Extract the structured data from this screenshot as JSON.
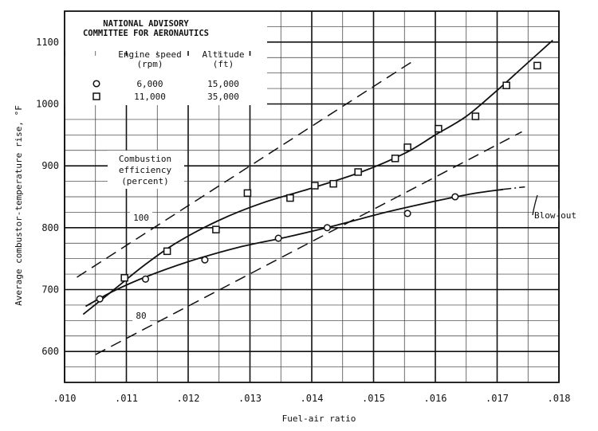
{
  "chart_data": {
    "type": "scatter",
    "header": {
      "organization_line1": "NATIONAL ADVISORY",
      "organization_line2": "COMMITTEE FOR AERONAUTICS"
    },
    "xlabel": "Fuel-air ratio",
    "ylabel": "Average combustor-temperature rise, °F",
    "xlim": [
      0.01,
      0.018
    ],
    "ylim": [
      550,
      1150
    ],
    "x_ticks": [
      ".010",
      ".011",
      ".012",
      ".013",
      ".014",
      ".015",
      ".016",
      ".017",
      ".018"
    ],
    "y_ticks": [
      "600",
      "700",
      "800",
      "900",
      "1000",
      "1100"
    ],
    "grid": true,
    "legend": {
      "col1_header_line1": "Engine speed",
      "col1_header_line2": "(rpm)",
      "col2_header_line1": "Altitude",
      "col2_header_line2": "(ft)",
      "placement": "top-left",
      "rows": [
        {
          "symbol": "circle",
          "speed": "6,000",
          "altitude": "15,000"
        },
        {
          "symbol": "square",
          "speed": "11,000",
          "altitude": "35,000"
        }
      ]
    },
    "series": [
      {
        "symbol": "circle",
        "points": [
          [
            0.01057,
            685
          ],
          [
            0.01131,
            717
          ],
          [
            0.01227,
            748
          ],
          [
            0.01346,
            783
          ],
          [
            0.01425,
            800
          ],
          [
            0.01555,
            823
          ],
          [
            0.01632,
            850
          ]
        ],
        "fit_curve": [
          [
            0.01034,
            673
          ],
          [
            0.0108,
            698
          ],
          [
            0.0113,
            720
          ],
          [
            0.012,
            745
          ],
          [
            0.0128,
            768
          ],
          [
            0.0136,
            785
          ],
          [
            0.0144,
            804
          ],
          [
            0.0152,
            825
          ],
          [
            0.016,
            843
          ],
          [
            0.0166,
            855
          ],
          [
            0.0171,
            862
          ]
        ],
        "blowout_extension": [
          [
            0.0171,
            862
          ],
          [
            0.01745,
            866
          ]
        ]
      },
      {
        "symbol": "square",
        "points": [
          [
            0.01097,
            719
          ],
          [
            0.01166,
            762
          ],
          [
            0.01245,
            797
          ],
          [
            0.01296,
            856
          ],
          [
            0.01365,
            848
          ],
          [
            0.01405,
            868
          ],
          [
            0.01435,
            871
          ],
          [
            0.01475,
            890
          ],
          [
            0.01535,
            912
          ],
          [
            0.01555,
            930
          ],
          [
            0.01605,
            960
          ],
          [
            0.01665,
            980
          ],
          [
            0.01715,
            1030
          ],
          [
            0.01765,
            1062
          ]
        ],
        "fit_curve": [
          [
            0.0103,
            660
          ],
          [
            0.0108,
            700
          ],
          [
            0.0113,
            740
          ],
          [
            0.0118,
            775
          ],
          [
            0.0125,
            812
          ],
          [
            0.0132,
            840
          ],
          [
            0.014,
            864
          ],
          [
            0.0148,
            890
          ],
          [
            0.0155,
            920
          ],
          [
            0.016,
            950
          ],
          [
            0.0165,
            980
          ],
          [
            0.017,
            1022
          ],
          [
            0.0174,
            1058
          ],
          [
            0.0177,
            1085
          ],
          [
            0.0179,
            1103
          ]
        ]
      }
    ],
    "efficiency_lines": {
      "title_line1": "Combustion",
      "title_line2": "efficiency",
      "title_line3": "(percent)",
      "lines": [
        {
          "label": "100",
          "points": [
            [
              0.0102,
              720
            ],
            [
              0.01565,
              1070
            ]
          ]
        },
        {
          "label": "80",
          "points": [
            [
              0.0105,
              595
            ],
            [
              0.0174,
              955
            ]
          ]
        }
      ]
    },
    "annotations": {
      "blowout": "Blow-out"
    }
  }
}
